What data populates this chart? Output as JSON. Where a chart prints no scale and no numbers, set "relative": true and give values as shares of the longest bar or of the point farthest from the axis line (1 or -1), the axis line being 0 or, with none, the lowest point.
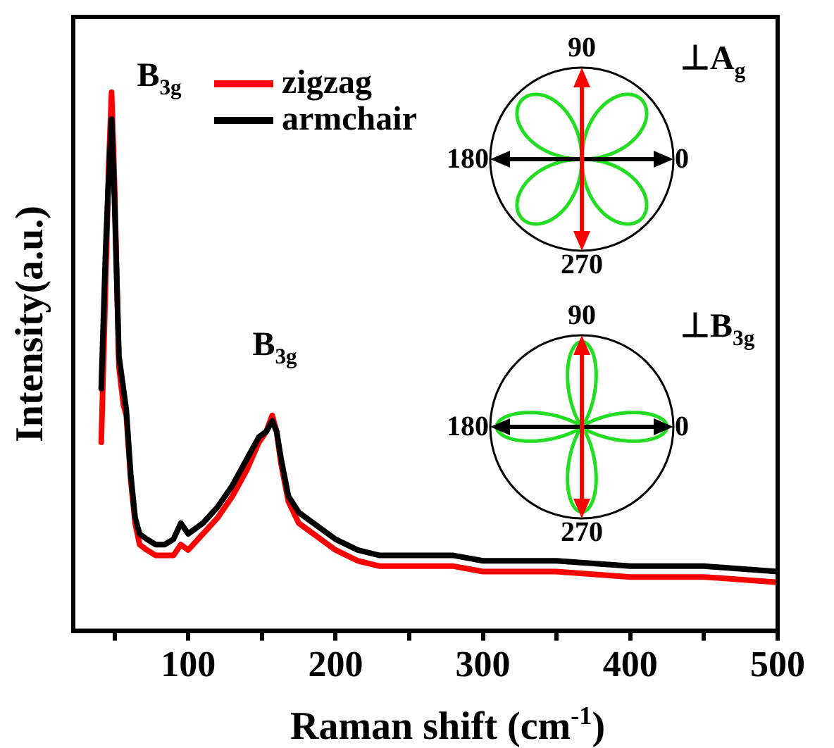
{
  "chart_data": {
    "type": "line",
    "relative": true,
    "xlabel": "Raman shift (cm$^{-1}$)",
    "ylabel": "Intensity(a.u.)",
    "xlim": [
      22,
      500
    ],
    "xticks": [
      {
        "value": 50,
        "label": null
      },
      100,
      {
        "value": 150,
        "label": null
      },
      200,
      {
        "value": 250,
        "label": null
      },
      300,
      {
        "value": 350,
        "label": null
      },
      400,
      {
        "value": 450,
        "label": null
      },
      500
    ],
    "x": [
      41,
      44,
      46,
      48,
      50,
      53,
      56,
      58,
      61,
      64,
      67,
      72,
      78,
      84,
      90,
      95,
      100,
      110,
      120,
      130,
      140,
      148,
      153,
      157,
      160,
      163,
      168,
      175,
      185,
      200,
      215,
      230,
      250,
      280,
      300,
      350,
      400,
      450,
      500
    ],
    "series": [
      {
        "name": "zigzag",
        "color": "#ff0000",
        "values": [
          0.35,
          0.65,
          0.86,
          1.0,
          0.83,
          0.49,
          0.42,
          0.4,
          0.28,
          0.2,
          0.16,
          0.15,
          0.14,
          0.14,
          0.14,
          0.16,
          0.15,
          0.18,
          0.21,
          0.25,
          0.3,
          0.35,
          0.37,
          0.4,
          0.37,
          0.31,
          0.24,
          0.2,
          0.18,
          0.15,
          0.13,
          0.12,
          0.12,
          0.12,
          0.11,
          0.11,
          0.1,
          0.1,
          0.09
        ]
      },
      {
        "name": "armchair",
        "color": "#000000",
        "values": [
          0.45,
          0.71,
          0.84,
          0.95,
          0.8,
          0.51,
          0.45,
          0.41,
          0.29,
          0.21,
          0.18,
          0.17,
          0.16,
          0.16,
          0.17,
          0.2,
          0.18,
          0.2,
          0.23,
          0.27,
          0.32,
          0.36,
          0.37,
          0.39,
          0.37,
          0.32,
          0.25,
          0.22,
          0.2,
          0.17,
          0.15,
          0.14,
          0.14,
          0.14,
          0.13,
          0.13,
          0.12,
          0.12,
          0.11
        ]
      }
    ],
    "legend": "top left",
    "grid": false,
    "marker": "none",
    "line_style": "solid",
    "annotations": [
      {
        "text": "B$_{3g}$",
        "x": 48,
        "y": 1.0
      },
      {
        "text": "B$_{3g}$",
        "x": 157,
        "y": 0.4
      },
      "90",
      "180",
      "0",
      "270",
      "⊥A$_{g}$",
      "90",
      "180",
      "0",
      "270",
      "⊥B$_{3g}$"
    ]
  }
}
